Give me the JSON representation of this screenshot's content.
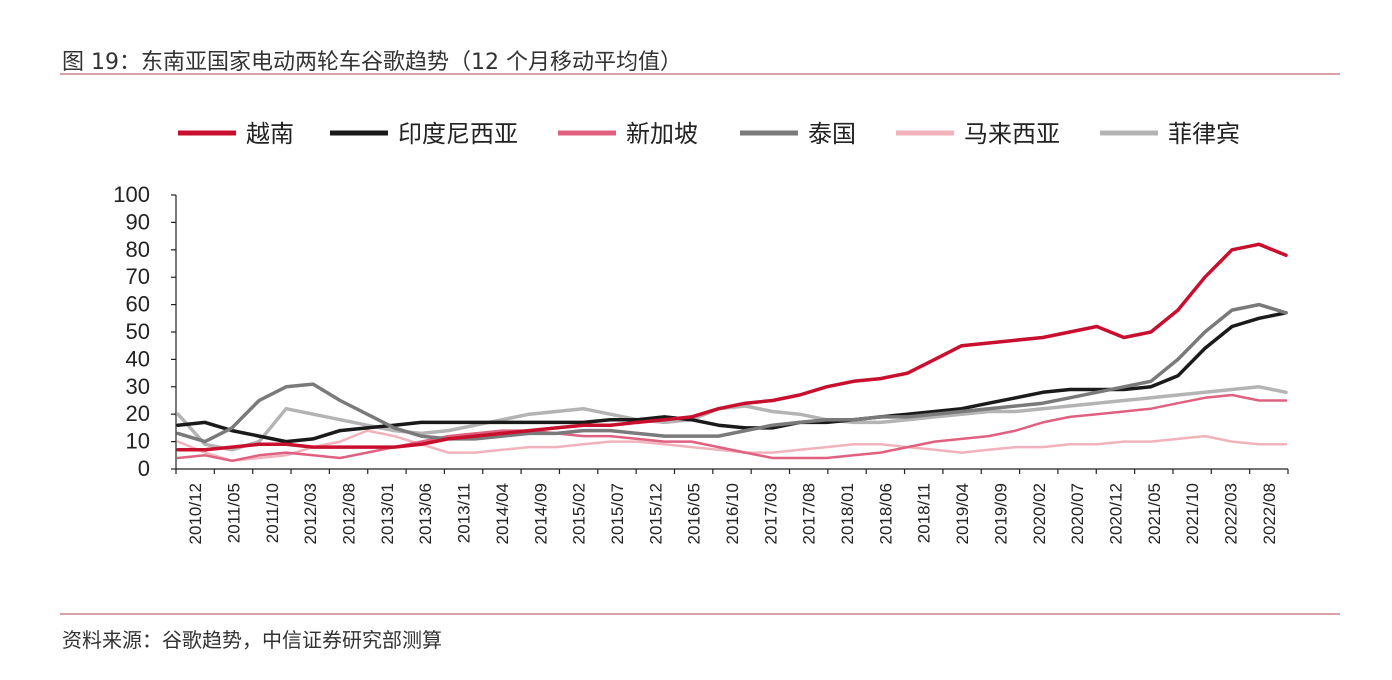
{
  "figure": {
    "title": "图 19：东南亚国家电动两轮车谷歌趋势（12 个月移动平均值）",
    "source": "资料来源：谷歌趋势，中信证券研究部测算"
  },
  "chart_data": {
    "type": "line",
    "title": "",
    "xlabel": "",
    "ylabel": "",
    "ylim": [
      0,
      100
    ],
    "yticks": [
      0,
      10,
      20,
      30,
      40,
      50,
      60,
      70,
      80,
      90,
      100
    ],
    "x_labels": [
      "2010/12",
      "2011/05",
      "2011/10",
      "2012/03",
      "2012/08",
      "2013/01",
      "2013/06",
      "2013/11",
      "2014/04",
      "2014/09",
      "2015/02",
      "2015/07",
      "2015/12",
      "2016/05",
      "2016/10",
      "2017/03",
      "2017/08",
      "2018/01",
      "2018/06",
      "2018/11",
      "2019/04",
      "2019/09",
      "2020/02",
      "2020/07",
      "2020/12",
      "2021/05",
      "2021/10",
      "2022/03",
      "2022/08"
    ],
    "legend_position": "top",
    "grid": false,
    "series": [
      {
        "name": "越南",
        "color": "#c8102e",
        "width": 3.5,
        "values": [
          7,
          7,
          8,
          9,
          9,
          8,
          8,
          8,
          8,
          9,
          11,
          12,
          13,
          14,
          15,
          16,
          16,
          17,
          18,
          19,
          22,
          24,
          25,
          27,
          30,
          32,
          33,
          35,
          40,
          45,
          46,
          47,
          48,
          50,
          52,
          48,
          50,
          58,
          70,
          80,
          82,
          78
        ]
      },
      {
        "name": "印度尼西亚",
        "color": "#1a1a1a",
        "width": 3.5,
        "values": [
          16,
          17,
          14,
          12,
          10,
          11,
          14,
          15,
          16,
          17,
          17,
          17,
          17,
          17,
          17,
          17,
          18,
          18,
          19,
          18,
          16,
          15,
          15,
          17,
          17,
          18,
          19,
          20,
          21,
          22,
          24,
          26,
          28,
          29,
          29,
          29,
          30,
          34,
          44,
          52,
          55,
          57
        ]
      },
      {
        "name": "新加坡",
        "color": "#e06080",
        "width": 2.5,
        "values": [
          4,
          5,
          3,
          5,
          6,
          5,
          4,
          6,
          8,
          10,
          12,
          13,
          14,
          14,
          13,
          12,
          12,
          11,
          10,
          10,
          8,
          6,
          4,
          4,
          4,
          5,
          6,
          8,
          10,
          11,
          12,
          14,
          17,
          19,
          20,
          21,
          22,
          24,
          26,
          27,
          25,
          25
        ]
      },
      {
        "name": "泰国",
        "color": "#7a7a7a",
        "width": 3.5,
        "values": [
          13,
          10,
          15,
          25,
          30,
          31,
          25,
          20,
          15,
          12,
          11,
          11,
          12,
          13,
          13,
          14,
          14,
          13,
          12,
          12,
          12,
          14,
          16,
          17,
          18,
          18,
          19,
          19,
          20,
          21,
          22,
          23,
          24,
          26,
          28,
          30,
          32,
          40,
          50,
          58,
          60,
          57
        ]
      },
      {
        "name": "马来西亚",
        "color": "#f2b2bc",
        "width": 2.5,
        "values": [
          10,
          6,
          3,
          4,
          5,
          8,
          10,
          14,
          12,
          9,
          6,
          6,
          7,
          8,
          8,
          9,
          10,
          10,
          9,
          8,
          7,
          6,
          6,
          7,
          8,
          9,
          9,
          8,
          7,
          6,
          7,
          8,
          8,
          9,
          9,
          10,
          10,
          11,
          12,
          10,
          9,
          9
        ]
      },
      {
        "name": "菲律宾",
        "color": "#b4b4b4",
        "width": 3.5,
        "values": [
          20,
          9,
          7,
          10,
          22,
          20,
          18,
          16,
          14,
          13,
          14,
          16,
          18,
          20,
          21,
          22,
          20,
          18,
          17,
          18,
          22,
          23,
          21,
          20,
          18,
          17,
          17,
          18,
          19,
          20,
          21,
          21,
          22,
          23,
          24,
          25,
          26,
          27,
          28,
          29,
          30,
          28
        ]
      }
    ]
  }
}
